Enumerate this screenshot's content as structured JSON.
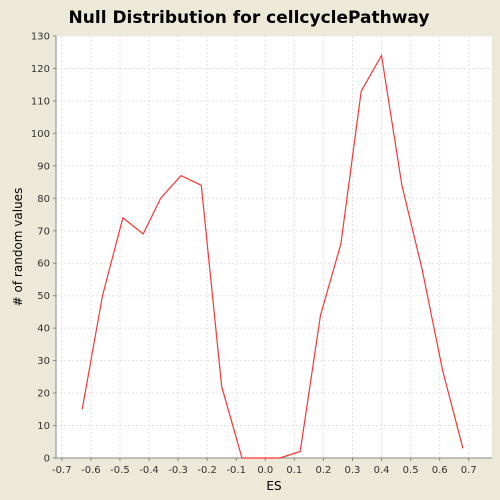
{
  "chart_data": {
    "type": "line",
    "title": "Null Distribution for cellcyclePathway",
    "xlabel": "ES",
    "ylabel": "# of random values",
    "xlim": [
      -0.72,
      0.78
    ],
    "ylim": [
      0,
      130
    ],
    "xticks": [
      -0.7,
      -0.6,
      -0.5,
      -0.4,
      -0.3,
      -0.2,
      -0.1,
      0.0,
      0.1,
      0.2,
      0.3,
      0.4,
      0.5,
      0.6,
      0.7
    ],
    "xtick_labels": [
      "-0.7",
      "-0.6",
      "-0.5",
      "-0.4",
      "-0.3",
      "-0.2",
      "-0.1",
      "0.0",
      "0.1",
      "0.2",
      "0.3",
      "0.4",
      "0.5",
      "0.6",
      "0.7"
    ],
    "yticks": [
      0,
      10,
      20,
      30,
      40,
      50,
      60,
      70,
      80,
      90,
      100,
      110,
      120,
      130
    ],
    "ytick_labels": [
      "0",
      "10",
      "20",
      "30",
      "40",
      "50",
      "60",
      "70",
      "80",
      "90",
      "100",
      "110",
      "120",
      "130"
    ],
    "grid": true,
    "series": [
      {
        "x": [
          -0.63,
          -0.56,
          -0.49,
          -0.42,
          -0.36,
          -0.29,
          -0.22,
          -0.15,
          -0.08,
          -0.02,
          0.05,
          0.12,
          0.19,
          0.26,
          0.33,
          0.4,
          0.47,
          0.54,
          0.61,
          0.68
        ],
        "y": [
          15,
          50,
          74,
          69,
          80,
          87,
          84,
          22,
          0,
          0,
          0,
          2,
          44,
          66,
          113,
          124,
          84,
          58,
          27,
          3
        ]
      }
    ],
    "colors": {
      "line": "#FF3333",
      "plot_bg": "#FFFFFF",
      "page_bg": "#ECE9D8",
      "grid": "#E2E2E2",
      "axis": "#888888"
    }
  }
}
